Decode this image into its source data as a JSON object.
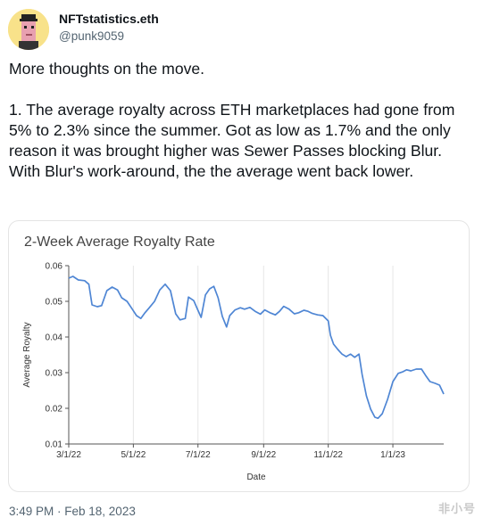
{
  "tweet": {
    "author_name": "NFTstatistics.eth",
    "author_handle": "@punk9059",
    "text": "More thoughts on the move.\n\n1. The average royalty across ETH marketplaces had gone from 5% to 2.3% since the summer. Got as low as 1.7% and the only reason it was brought higher was Sewer Passes blocking Blur. With Blur's work-around, the the average went back lower.",
    "timestamp": "3:49 PM · Feb 18, 2023",
    "watermark": "非小号"
  },
  "icons": {
    "avatar": "pixel-punk-avatar-icon"
  },
  "colors": {
    "line": "#4f86d4",
    "grid": "#e6e6e6",
    "axis": "#555555"
  },
  "chart_data": {
    "type": "line",
    "title": "2-Week Average Royalty Rate",
    "xlabel": "Date",
    "ylabel": "Average Royalty",
    "ylim": [
      0.01,
      0.06
    ],
    "yticks": [
      "0.01",
      "0.02",
      "0.03",
      "0.04",
      "0.05",
      "0.06"
    ],
    "xlim": [
      "2022-03-01",
      "2023-02-18"
    ],
    "xticks": [
      {
        "date": "2022-03-01",
        "label": "3/1/22"
      },
      {
        "date": "2022-05-01",
        "label": "5/1/22"
      },
      {
        "date": "2022-07-01",
        "label": "7/1/22"
      },
      {
        "date": "2022-09-01",
        "label": "9/1/22"
      },
      {
        "date": "2022-11-01",
        "label": "11/1/22"
      },
      {
        "date": "2023-01-01",
        "label": "1/1/23"
      }
    ],
    "grid": "vertical",
    "series": [
      {
        "x": [
          "2022-03-01",
          "2022-03-05",
          "2022-03-10",
          "2022-03-16",
          "2022-03-20",
          "2022-03-23",
          "2022-03-28",
          "2022-04-01",
          "2022-04-06",
          "2022-04-11",
          "2022-04-16",
          "2022-04-20",
          "2022-04-25",
          "2022-04-30",
          "2022-05-04",
          "2022-05-08",
          "2022-05-12",
          "2022-05-16",
          "2022-05-21",
          "2022-05-26",
          "2022-05-31",
          "2022-06-05",
          "2022-06-10",
          "2022-06-14",
          "2022-06-19",
          "2022-06-22",
          "2022-06-27",
          "2022-07-01",
          "2022-07-04",
          "2022-07-08",
          "2022-07-12",
          "2022-07-16",
          "2022-07-20",
          "2022-07-24",
          "2022-07-28",
          "2022-07-31",
          "2022-08-05",
          "2022-08-10",
          "2022-08-14",
          "2022-08-19",
          "2022-08-24",
          "2022-08-29",
          "2022-09-02",
          "2022-09-07",
          "2022-09-12",
          "2022-09-16",
          "2022-09-20",
          "2022-09-25",
          "2022-09-30",
          "2022-10-04",
          "2022-10-09",
          "2022-10-13",
          "2022-10-17",
          "2022-10-22",
          "2022-10-27",
          "2022-11-01",
          "2022-11-03",
          "2022-11-06",
          "2022-11-10",
          "2022-11-14",
          "2022-11-18",
          "2022-11-22",
          "2022-11-26",
          "2022-11-30",
          "2022-12-03",
          "2022-12-07",
          "2022-12-11",
          "2022-12-15",
          "2022-12-18",
          "2022-12-22",
          "2022-12-27",
          "2023-01-01",
          "2023-01-06",
          "2023-01-10",
          "2023-01-14",
          "2023-01-18",
          "2023-01-23",
          "2023-01-28",
          "2023-02-01",
          "2023-02-05",
          "2023-02-10",
          "2023-02-14",
          "2023-02-18"
        ],
        "y": [
          0.0565,
          0.057,
          0.056,
          0.0558,
          0.0548,
          0.049,
          0.0485,
          0.0488,
          0.053,
          0.054,
          0.0532,
          0.051,
          0.05,
          0.0478,
          0.046,
          0.0452,
          0.0468,
          0.0482,
          0.05,
          0.0532,
          0.0548,
          0.053,
          0.0465,
          0.0448,
          0.0452,
          0.0512,
          0.0502,
          0.0475,
          0.0455,
          0.0518,
          0.0535,
          0.0542,
          0.051,
          0.0458,
          0.0428,
          0.046,
          0.0476,
          0.0482,
          0.0478,
          0.0483,
          0.0472,
          0.0464,
          0.0476,
          0.0468,
          0.0462,
          0.0472,
          0.0486,
          0.0478,
          0.0465,
          0.0468,
          0.0475,
          0.0472,
          0.0466,
          0.0462,
          0.046,
          0.0445,
          0.0405,
          0.038,
          0.0365,
          0.0352,
          0.0345,
          0.0352,
          0.0343,
          0.0352,
          0.0295,
          0.0235,
          0.0198,
          0.0175,
          0.0172,
          0.0185,
          0.0225,
          0.0275,
          0.0298,
          0.0302,
          0.0308,
          0.0305,
          0.031,
          0.031,
          0.0292,
          0.0275,
          0.027,
          0.0265,
          0.024
        ]
      }
    ]
  }
}
